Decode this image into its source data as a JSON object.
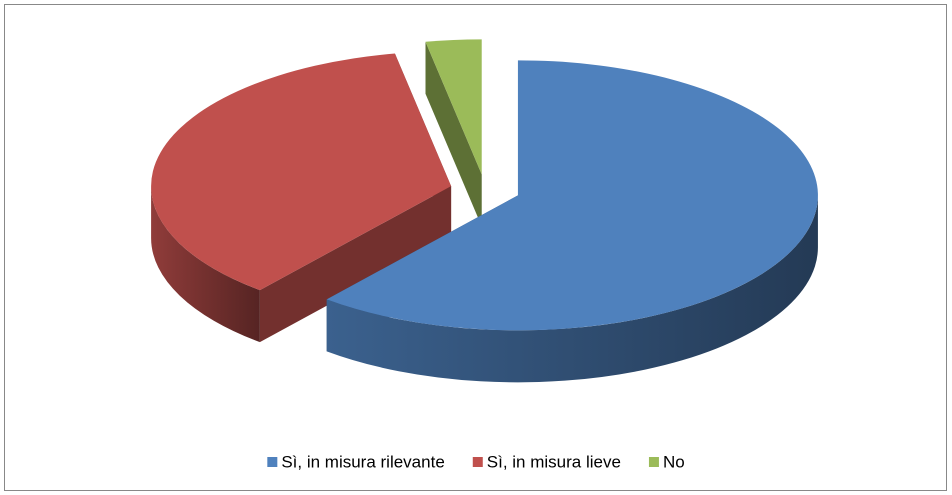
{
  "chart_data": {
    "type": "pie",
    "three_d": true,
    "legend": "bottom",
    "categories": [
      "Sì, in misura rilevante",
      "Sì, in misura lieve",
      "No"
    ],
    "values": [
      61,
      36,
      3
    ],
    "colors": [
      "#4f81bd",
      "#c0504d",
      "#9bbb59"
    ]
  }
}
